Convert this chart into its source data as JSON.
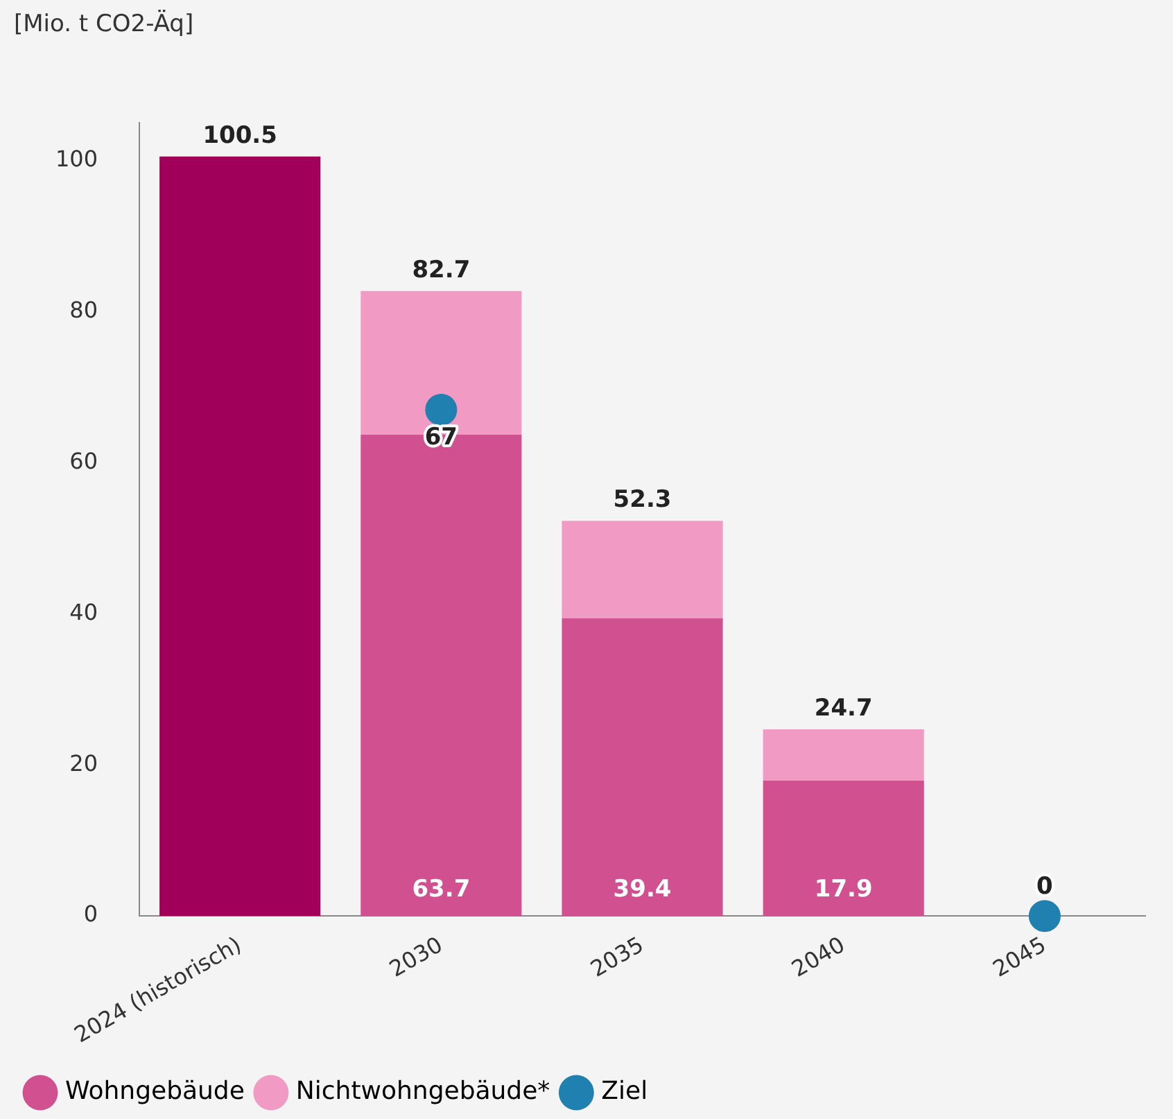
{
  "chart_data": {
    "type": "bar",
    "ylabel": "[Mio. t CO2-Äq]",
    "categories": [
      "2024 (historisch)",
      "2030",
      "2035",
      "2040",
      "2045"
    ],
    "stacked": true,
    "series": [
      {
        "name": "Wohngebäude",
        "color": "#d05090",
        "colors": [
          "#a0005a",
          "#d05090",
          "#d05090",
          "#d05090",
          "#d05090"
        ],
        "values": [
          100.5,
          63.7,
          39.4,
          17.9,
          null
        ],
        "value_labels": [
          null,
          "63.7",
          "39.4",
          "17.9",
          null
        ]
      },
      {
        "name": "Nichtwohngebäude*",
        "color": "#f19ac3",
        "values": [
          null,
          19.0,
          12.9,
          6.8,
          null
        ]
      },
      {
        "name": "Ziel",
        "type": "scatter",
        "color": "#2080b0",
        "values": [
          null,
          67,
          null,
          null,
          0
        ],
        "value_labels": [
          null,
          "67",
          null,
          null,
          "0"
        ]
      }
    ],
    "totals": [
      "100.5",
      "82.7",
      "52.3",
      "24.7",
      null
    ],
    "ylim": [
      0,
      105
    ],
    "yticks": [
      0,
      20,
      40,
      60,
      80,
      100
    ],
    "grid": false,
    "legend": "bottom left",
    "marker": "circle"
  }
}
